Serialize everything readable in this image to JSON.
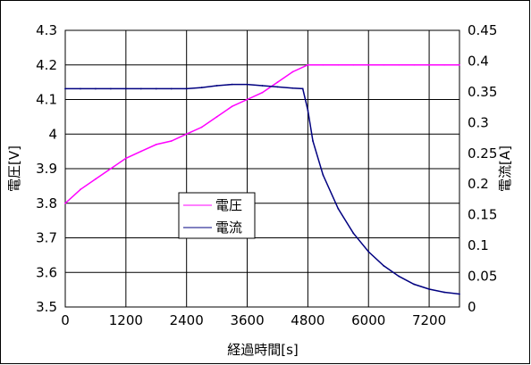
{
  "chart_data": {
    "type": "line",
    "xlabel": "経過時間[s]",
    "ylabel_left": "電圧[V]",
    "ylabel_right": "電流[A]",
    "xlim": [
      0,
      7800
    ],
    "ylim_left": [
      3.5,
      4.3
    ],
    "ylim_right": [
      0,
      0.45
    ],
    "x_ticks": [
      "0",
      "1200",
      "2400",
      "3600",
      "4800",
      "6000",
      "7200"
    ],
    "y_left_ticks": [
      "3.5",
      "3.6",
      "3.7",
      "3.8",
      "3.9",
      "4",
      "4.1",
      "4.2",
      "4.3"
    ],
    "y_right_ticks": [
      "0",
      "0.05",
      "0.1",
      "0.15",
      "0.2",
      "0.25",
      "0.3",
      "0.35",
      "0.4",
      "0.45"
    ],
    "grid": true,
    "legend_position": "center-left",
    "series": [
      {
        "name": "電圧",
        "color": "#ff00ff",
        "axis": "left",
        "x": [
          0,
          300,
          600,
          900,
          1200,
          1500,
          1800,
          2100,
          2400,
          2700,
          3000,
          3300,
          3600,
          3900,
          4200,
          4500,
          4800,
          5100,
          5400,
          5700,
          6000,
          6300,
          6600,
          6900,
          7200,
          7500,
          7800
        ],
        "values": [
          3.8,
          3.84,
          3.87,
          3.9,
          3.93,
          3.95,
          3.97,
          3.98,
          4.0,
          4.02,
          4.05,
          4.08,
          4.1,
          4.12,
          4.15,
          4.18,
          4.2,
          4.2,
          4.2,
          4.2,
          4.2,
          4.2,
          4.2,
          4.2,
          4.2,
          4.2,
          4.2
        ]
      },
      {
        "name": "電流",
        "color": "#000080",
        "axis": "right",
        "x": [
          0,
          300,
          600,
          900,
          1200,
          1500,
          1800,
          2100,
          2400,
          2700,
          3000,
          3300,
          3600,
          3900,
          4200,
          4500,
          4700,
          4800,
          4900,
          5100,
          5400,
          5700,
          6000,
          6300,
          6600,
          6900,
          7200,
          7500,
          7800
        ],
        "values": [
          0.355,
          0.355,
          0.355,
          0.355,
          0.355,
          0.355,
          0.355,
          0.355,
          0.355,
          0.357,
          0.36,
          0.362,
          0.362,
          0.36,
          0.358,
          0.356,
          0.355,
          0.32,
          0.27,
          0.215,
          0.16,
          0.12,
          0.09,
          0.067,
          0.05,
          0.037,
          0.029,
          0.024,
          0.021
        ]
      }
    ]
  }
}
